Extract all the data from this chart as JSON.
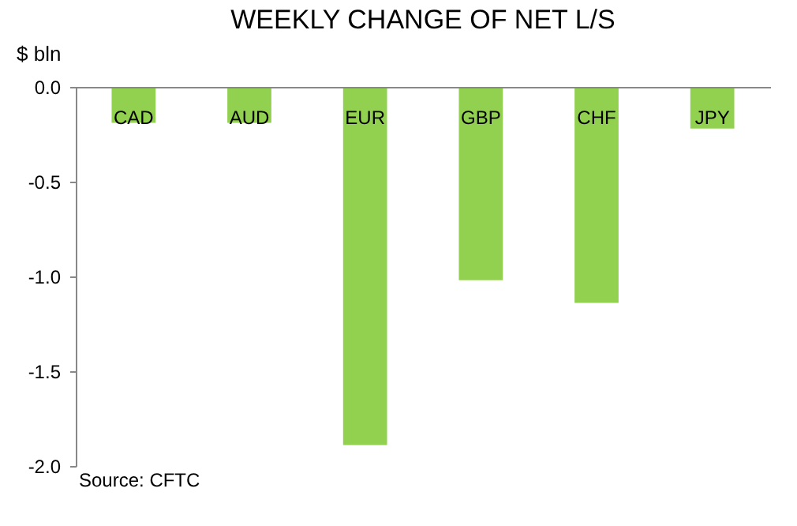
{
  "chart_data": {
    "type": "bar",
    "title": "WEEKLY CHANGE OF NET L/S",
    "ylabel": "$ bln",
    "categories": [
      "CAD",
      "AUD",
      "EUR",
      "GBP",
      "CHF",
      "JPY"
    ],
    "values": [
      -0.19,
      -0.19,
      -1.89,
      -1.02,
      -1.14,
      -0.22
    ],
    "color": "#92d050",
    "ylim": [
      -2.0,
      0.0
    ],
    "yticks": [
      {
        "value": -2.0,
        "label": "-2.0"
      },
      {
        "value": -1.5,
        "label": "-1.5"
      },
      {
        "value": -1.0,
        "label": "-1.0"
      },
      {
        "value": -0.5,
        "label": "-0.5"
      },
      {
        "value": 0.0,
        "label": "0.0"
      }
    ],
    "grid": false,
    "annotations": [
      "Source: CFTC"
    ]
  }
}
